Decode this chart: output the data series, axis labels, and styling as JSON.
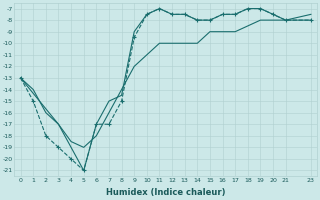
{
  "xlabel": "Humidex (Indice chaleur)",
  "bg_color": "#cce8e8",
  "line_color": "#1a6e6e",
  "xlim": [
    -0.5,
    23.5
  ],
  "ylim": [
    -21.5,
    -6.5
  ],
  "xticks": [
    0,
    1,
    2,
    3,
    4,
    5,
    6,
    7,
    8,
    9,
    10,
    11,
    12,
    13,
    14,
    15,
    16,
    17,
    18,
    19,
    20,
    21,
    23
  ],
  "yticks": [
    -7,
    -8,
    -9,
    -10,
    -11,
    -12,
    -13,
    -14,
    -15,
    -16,
    -17,
    -18,
    -19,
    -20,
    -21
  ],
  "line_dashed_x": [
    0,
    1,
    2,
    3,
    4,
    5,
    6,
    7,
    8,
    9,
    10,
    11,
    12,
    13,
    14,
    15,
    16,
    17,
    18,
    19,
    20,
    21,
    23
  ],
  "line_dashed_y": [
    -13,
    -15,
    -18,
    -19,
    -20,
    -21,
    -17,
    -17,
    -15,
    -9.5,
    -7.5,
    -7,
    -7.5,
    -7.5,
    -8,
    -8,
    -7.5,
    -7.5,
    -7,
    -7,
    -7.5,
    -8,
    -8
  ],
  "line_solid1_x": [
    0,
    3,
    5,
    6,
    7,
    8,
    9,
    10,
    11,
    12,
    13,
    14,
    15,
    16,
    17,
    18,
    19,
    20,
    21,
    23
  ],
  "line_solid1_y": [
    -13,
    -17,
    -21,
    -17,
    -15,
    -14.5,
    -9,
    -7.5,
    -7,
    -7.5,
    -7.5,
    -8,
    -8,
    -7.5,
    -7.5,
    -7,
    -7,
    -7.5,
    -8,
    -8
  ],
  "line_solid2_x": [
    0,
    1,
    2,
    3,
    4,
    5,
    6,
    7,
    8,
    9,
    10,
    11,
    12,
    13,
    14,
    15,
    16,
    17,
    18,
    19,
    20,
    21,
    23
  ],
  "line_solid2_y": [
    -13,
    -14,
    -16,
    -17,
    -18.5,
    -19,
    -18,
    -16,
    -14,
    -12,
    -11,
    -10,
    -10,
    -10,
    -10,
    -9,
    -9,
    -9,
    -8.5,
    -8,
    -8,
    -8,
    -7.5
  ]
}
